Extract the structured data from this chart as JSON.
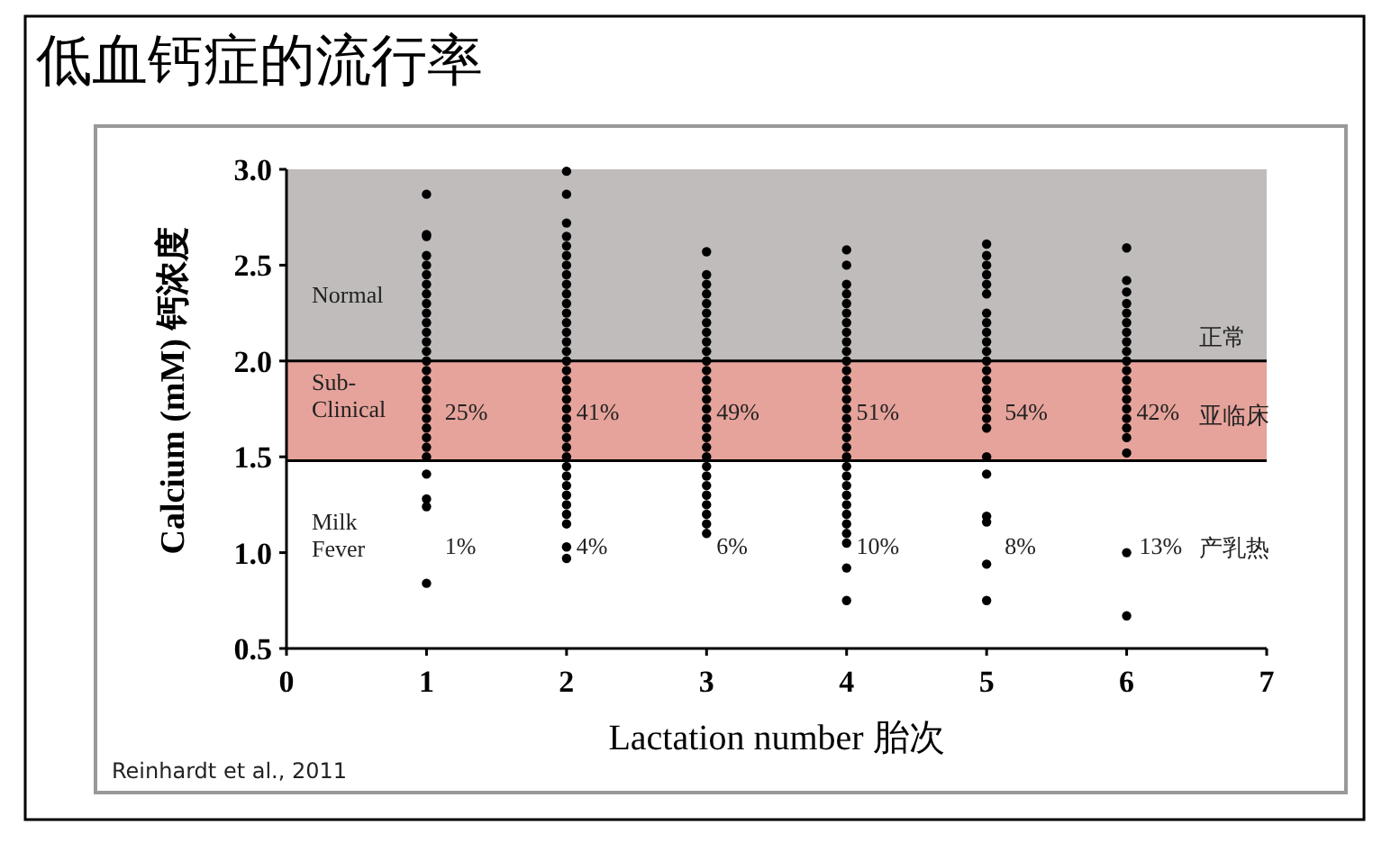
{
  "chart_data": {
    "type": "scatter",
    "title": "低血钙症的流行率",
    "xlabel": "Lactation number 胎次",
    "ylabel": "Calcium (mM) 钙浓度",
    "xlim": [
      0,
      7
    ],
    "xticks": [
      0,
      1,
      2,
      3,
      4,
      5,
      6,
      7
    ],
    "ylim": [
      0.5,
      3.0
    ],
    "yticks": [
      {
        "value": 0.5,
        "label": "0.5"
      },
      {
        "value": 1.0,
        "label": "1.0"
      },
      {
        "value": 1.5,
        "label": "1.5"
      },
      {
        "value": 2.0,
        "label": "2.0"
      },
      {
        "value": 2.5,
        "label": "2.5"
      },
      {
        "value": 3.0,
        "label": "3.0"
      }
    ],
    "grid": false,
    "marker": "circle",
    "bands": [
      {
        "axis": "y",
        "from": 2.0,
        "to": 3.0,
        "color": "#c0bcbb"
      },
      {
        "axis": "y",
        "from": 1.48,
        "to": 2.0,
        "color": "#e6a39b"
      }
    ],
    "ref_lines": [
      {
        "axis": "y",
        "value": 2.0,
        "color": "#000000"
      },
      {
        "axis": "y",
        "value": 1.48,
        "color": "#000000"
      }
    ],
    "series": [
      {
        "color": "#000000",
        "x": [
          1,
          1,
          1,
          1,
          1,
          1,
          1,
          1,
          1,
          1,
          1,
          1,
          1,
          1,
          1,
          1,
          1,
          1,
          1,
          1,
          1,
          1,
          1,
          1,
          1,
          1,
          1,
          1,
          1,
          2,
          2,
          2,
          2,
          2,
          2,
          2,
          2,
          2,
          2,
          2,
          2,
          2,
          2,
          2,
          2,
          2,
          2,
          2,
          2,
          2,
          2,
          2,
          2,
          2,
          2,
          2,
          2,
          2,
          2,
          2,
          2,
          2,
          2,
          2,
          2,
          3,
          3,
          3,
          3,
          3,
          3,
          3,
          3,
          3,
          3,
          3,
          3,
          3,
          3,
          3,
          3,
          3,
          3,
          3,
          3,
          3,
          3,
          3,
          3,
          3,
          3,
          3,
          3,
          3,
          4,
          4,
          4,
          4,
          4,
          4,
          4,
          4,
          4,
          4,
          4,
          4,
          4,
          4,
          4,
          4,
          4,
          4,
          4,
          4,
          4,
          4,
          4,
          4,
          4,
          4,
          4,
          4,
          4,
          4,
          4,
          4,
          5,
          5,
          5,
          5,
          5,
          5,
          5,
          5,
          5,
          5,
          5,
          5,
          5,
          5,
          5,
          5,
          5,
          5,
          5,
          5,
          5,
          5,
          5,
          5,
          5,
          6,
          6,
          6,
          6,
          6,
          6,
          6,
          6,
          6,
          6,
          6,
          6,
          6,
          6,
          6,
          6,
          6,
          6,
          6,
          6,
          6
        ],
        "values": [
          2.87,
          2.66,
          2.65,
          2.55,
          2.5,
          2.45,
          2.4,
          2.35,
          2.3,
          2.25,
          2.2,
          2.15,
          2.1,
          2.05,
          2.0,
          1.95,
          1.9,
          1.85,
          1.8,
          1.75,
          1.7,
          1.65,
          1.6,
          1.55,
          1.5,
          1.41,
          1.28,
          1.24,
          0.84,
          2.99,
          2.87,
          2.72,
          2.65,
          2.6,
          2.55,
          2.5,
          2.45,
          2.4,
          2.35,
          2.3,
          2.25,
          2.2,
          2.15,
          2.1,
          2.05,
          2.0,
          1.95,
          1.9,
          1.85,
          1.8,
          1.75,
          1.7,
          1.65,
          1.6,
          1.55,
          1.5,
          1.45,
          1.4,
          1.35,
          1.3,
          1.25,
          1.2,
          1.15,
          1.03,
          0.97,
          2.57,
          2.45,
          2.4,
          2.35,
          2.3,
          2.25,
          2.2,
          2.15,
          2.1,
          2.05,
          2.0,
          1.95,
          1.9,
          1.85,
          1.8,
          1.75,
          1.7,
          1.65,
          1.6,
          1.55,
          1.5,
          1.45,
          1.4,
          1.35,
          1.3,
          1.25,
          1.2,
          1.15,
          1.1,
          2.58,
          2.5,
          2.4,
          2.35,
          2.3,
          2.25,
          2.2,
          2.15,
          2.1,
          2.05,
          2.0,
          1.95,
          1.9,
          1.85,
          1.8,
          1.75,
          1.7,
          1.65,
          1.6,
          1.55,
          1.5,
          1.45,
          1.4,
          1.35,
          1.3,
          1.25,
          1.2,
          1.15,
          1.1,
          1.05,
          0.92,
          0.75,
          2.61,
          2.55,
          2.5,
          2.45,
          2.4,
          2.35,
          2.25,
          2.2,
          2.15,
          2.1,
          2.05,
          2.0,
          1.95,
          1.9,
          1.85,
          1.8,
          1.75,
          1.7,
          1.65,
          1.5,
          1.41,
          1.19,
          1.16,
          0.94,
          0.75,
          2.59,
          2.42,
          2.36,
          2.3,
          2.25,
          2.2,
          2.15,
          2.1,
          2.05,
          2.0,
          1.95,
          1.9,
          1.85,
          1.8,
          1.75,
          1.7,
          1.65,
          1.6,
          1.52,
          1.0,
          0.67
        ]
      }
    ],
    "annotations": [
      "Normal",
      "Sub-\nClinical",
      "Milk\nFever",
      "25%",
      "41%",
      "49%",
      "51%",
      "54%",
      "42%",
      "1%",
      "4%",
      "6%",
      "10%",
      "8%",
      "13%",
      "正常",
      "亚临床",
      "产乳热",
      "Reinhardt et al., 2011"
    ]
  }
}
